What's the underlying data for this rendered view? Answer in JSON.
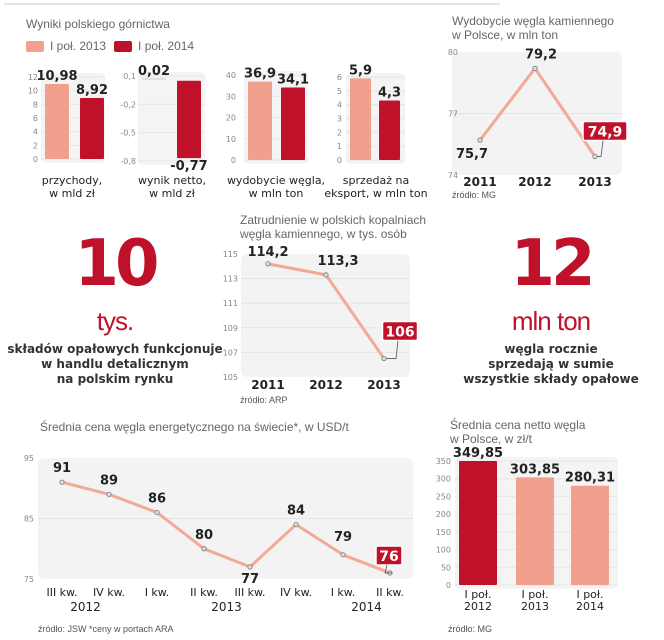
{
  "colors": {
    "dark_red": "#c0112a",
    "salmon": "#f0a08c",
    "line": "#f2a995",
    "panel": "#f2f2f2",
    "grid": "#dedede"
  },
  "top_left": {
    "title": "Wyniki polskiego górnictwa",
    "legend": [
      {
        "label": "I poł. 2013",
        "color": "#f0a08c"
      },
      {
        "label": "I poł. 2014",
        "color": "#c0112a"
      }
    ]
  },
  "chart_data": [
    {
      "id": "revenue",
      "type": "bar",
      "categories": [
        "I poł. 2013",
        "I poł. 2014"
      ],
      "values": [
        10.98,
        8.92
      ],
      "value_labels": [
        "10,98",
        "8,92"
      ],
      "yticks": [
        "0",
        "2",
        "4",
        "6",
        "8",
        "10",
        "12"
      ],
      "ylim": [
        0,
        12
      ],
      "xlabel": "przychody,\nw mld zł"
    },
    {
      "id": "net_result",
      "type": "bar",
      "categories": [
        "I poł. 2013",
        "I poł. 2014"
      ],
      "values": [
        0.02,
        -0.77
      ],
      "value_labels": [
        "0,02",
        "-0,77"
      ],
      "yticks": [
        "0,1",
        "-0,2",
        "-0,5",
        "-0,8"
      ],
      "ylim": [
        -0.8,
        0.1
      ],
      "xlabel": "wynik netto,\nw mld zł"
    },
    {
      "id": "coal_output",
      "type": "bar",
      "categories": [
        "I poł. 2013",
        "I poł. 2014"
      ],
      "values": [
        36.9,
        34.1
      ],
      "value_labels": [
        "36,9",
        "34,1"
      ],
      "yticks": [
        "0",
        "10",
        "20",
        "30",
        "40"
      ],
      "ylim": [
        0,
        40
      ],
      "xlabel": "wydobycie węgla,\nw mln ton"
    },
    {
      "id": "export_sales",
      "type": "bar",
      "categories": [
        "I poł. 2013",
        "I poł. 2014"
      ],
      "values": [
        5.9,
        4.3
      ],
      "value_labels": [
        "5,9",
        "4,3"
      ],
      "yticks": [
        "0",
        "1",
        "2",
        "3",
        "4",
        "5",
        "6"
      ],
      "ylim": [
        0,
        6
      ],
      "xlabel": "sprzedaż na\neksport, w mln ton"
    },
    {
      "id": "hard_coal_output",
      "type": "line",
      "title": "Wydobycie węgla kamiennego\nw Polsce, w mln ton",
      "x": [
        "2011",
        "2012",
        "2013"
      ],
      "values": [
        75.7,
        79.2,
        74.9
      ],
      "value_labels": [
        "75,7",
        "79,2",
        "74,9"
      ],
      "highlight_last": true,
      "yticks": [
        "74",
        "77",
        "80"
      ],
      "ylim": [
        74,
        80
      ],
      "source": "źródło: MG"
    },
    {
      "id": "employment",
      "type": "line",
      "title": "Zatrudnienie w polskich kopalniach\nwęgla kamiennego, w tys. osób",
      "x": [
        "2011",
        "2012",
        "2013"
      ],
      "values": [
        114.2,
        113.3,
        106.5
      ],
      "value_labels": [
        "114,2",
        "113,3",
        "106"
      ],
      "highlight_last": true,
      "yticks": [
        "105",
        "107",
        "109",
        "111",
        "113",
        "115"
      ],
      "ylim": [
        105,
        115
      ],
      "source": "źródło: ARP"
    },
    {
      "id": "world_price",
      "type": "line",
      "title": "Średnia cena węgla energetycznego na świecie*, w USD/t",
      "x": [
        "III kw.",
        "IV kw.",
        "I kw.",
        "II kw.",
        "III kw.",
        "IV kw.",
        "I kw.",
        "II kw."
      ],
      "year_labels": [
        {
          "label": "2012",
          "span": [
            0,
            1
          ]
        },
        {
          "label": "2013",
          "span": [
            2,
            5
          ]
        },
        {
          "label": "2014",
          "span": [
            6,
            7
          ]
        }
      ],
      "values": [
        91,
        89,
        86,
        80,
        77,
        84,
        79,
        76
      ],
      "value_labels": [
        "91",
        "89",
        "86",
        "80",
        "77",
        "84",
        "79",
        "76"
      ],
      "highlight_last": true,
      "yticks": [
        "75",
        "85",
        "95"
      ],
      "ylim": [
        75,
        95
      ],
      "source": "źródło: JSW *ceny w portach ARA"
    },
    {
      "id": "poland_price",
      "type": "bar",
      "title": "Średnia cena netto węgla\nw Polsce, w zł/t",
      "categories": [
        "I poł.\n2012",
        "I poł.\n2013",
        "I poł.\n2014"
      ],
      "values": [
        349.85,
        303.85,
        280.31
      ],
      "value_labels": [
        "349,85",
        "303,85",
        "280,31"
      ],
      "bar_colors": [
        "#c0112a",
        "#f0a08c",
        "#f0a08c"
      ],
      "yticks": [
        "0",
        "50",
        "100",
        "150",
        "200",
        "250",
        "300",
        "350"
      ],
      "ylim": [
        0,
        350
      ],
      "source": "źródło: MG"
    }
  ],
  "facts": [
    {
      "number": "10",
      "unit": "tys.",
      "description": "składów opałowych funkcjonuje\nw handlu detalicznym\nna polskim rynku"
    },
    {
      "number": "12",
      "unit": "mln ton",
      "description": "węgla rocznie\nsprzedają w sumie\nwszystkie składy opałowe"
    }
  ]
}
